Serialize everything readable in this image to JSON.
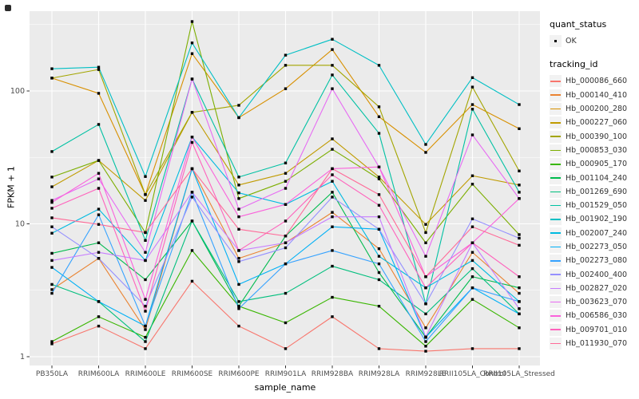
{
  "figure": {
    "y_axis_title": "FPKM + 1",
    "x_axis_title": "sample_name",
    "legend": {
      "quant_title": "quant_status",
      "quant_entries": [
        {
          "label": "OK",
          "marker": "black-square-point"
        }
      ],
      "tracking_title": "tracking_id"
    }
  },
  "chart_data": {
    "type": "line",
    "title": "",
    "xlabel": "sample_name",
    "ylabel": "FPKM + 1",
    "y_scale": "log10",
    "ylim": [
      0.62,
      430
    ],
    "y_major_breaks": [
      1,
      10,
      100
    ],
    "y_minor_breaks": [
      3.1623,
      31.623,
      316.23
    ],
    "y_tick_labels": [
      "1",
      "10",
      "100"
    ],
    "grid": true,
    "panel_bg": "#EBEBEB",
    "grid_color": "#FFFFFF",
    "point_color": "#000000",
    "legend_position": "right",
    "categories": [
      "PB350LA",
      "RRIM600LA",
      "RRIM600LE",
      "RRIM600SE",
      "RRIM600PE",
      "RRIM901LA",
      "RRIM928BA",
      "RRIM928LA",
      "RRIM928LE",
      "RRII105LA_Control",
      "RRII105LA_Stressed"
    ],
    "series": [
      {
        "name": "Hb_000086_660",
        "color": "#F8766D",
        "values": [
          1.25,
          1.7,
          1.15,
          3.7,
          1.7,
          1.15,
          2.0,
          1.15,
          1.1,
          1.15,
          1.15
        ]
      },
      {
        "name": "Hb_000140_410",
        "color": "#EA8331",
        "values": [
          3.2,
          5.5,
          1.6,
          26,
          5.5,
          7.2,
          12.2,
          6.5,
          1.65,
          6.1,
          3.0
        ]
      },
      {
        "name": "Hb_000200_280",
        "color": "#D89000",
        "values": [
          125,
          96,
          16.6,
          191,
          63,
          104,
          205,
          64,
          34.5,
          79,
          52
        ]
      },
      {
        "name": "Hb_000227_060",
        "color": "#C09B00",
        "values": [
          19,
          30,
          15,
          69,
          19.6,
          24,
          43.6,
          22.5,
          9.9,
          23,
          19.6
        ]
      },
      {
        "name": "Hb_000390_100",
        "color": "#A3A500",
        "values": [
          125,
          145,
          16.6,
          69,
          78,
          156,
          156,
          76,
          8.6,
          107,
          25
        ]
      },
      {
        "name": "Hb_000853_030",
        "color": "#7CAE00",
        "values": [
          22.5,
          30,
          8.6,
          333,
          15.5,
          20.9,
          36.4,
          21.8,
          7.2,
          19.9,
          8.3
        ]
      },
      {
        "name": "Hb_000905_170",
        "color": "#39B600",
        "values": [
          1.3,
          2.0,
          1.4,
          6.3,
          2.4,
          1.8,
          2.8,
          2.4,
          1.2,
          2.7,
          1.65
        ]
      },
      {
        "name": "Hb_001104_240",
        "color": "#00BB4E",
        "values": [
          6.0,
          7.2,
          3.8,
          10.5,
          2.4,
          8.1,
          17.3,
          4.3,
          1.4,
          4.0,
          3.3
        ]
      },
      {
        "name": "Hb_001269_690",
        "color": "#00BF7D",
        "values": [
          3.5,
          2.6,
          1.3,
          10.5,
          2.6,
          3.0,
          4.8,
          3.8,
          2.1,
          4.6,
          2.1
        ]
      },
      {
        "name": "Hb_001529_050",
        "color": "#00C1A3",
        "values": [
          35,
          56,
          7.5,
          123,
          22.5,
          28.7,
          132,
          48,
          2.5,
          73,
          17.3
        ]
      },
      {
        "name": "Hb_001902_190",
        "color": "#00BFC4",
        "values": [
          147,
          151,
          22.7,
          230,
          63,
          186,
          245,
          156,
          39.6,
          126,
          79
        ]
      },
      {
        "name": "Hb_002007_240",
        "color": "#00BAE0",
        "values": [
          8.5,
          12.9,
          5.3,
          45,
          17.1,
          14.0,
          20.9,
          5.7,
          3.3,
          5.3,
          2.6
        ]
      },
      {
        "name": "Hb_002273_050",
        "color": "#00B0F6",
        "values": [
          4.7,
          2.6,
          1.7,
          26,
          3.5,
          5.0,
          9.5,
          9.1,
          1.4,
          3.3,
          2.1
        ]
      },
      {
        "name": "Hb_002273_080",
        "color": "#35A2FF",
        "values": [
          3.0,
          11.7,
          1.7,
          17.3,
          2.3,
          5.0,
          6.3,
          5.0,
          1.3,
          3.3,
          2.6
        ]
      },
      {
        "name": "Hb_002400_400",
        "color": "#9590FF",
        "values": [
          9.5,
          5.5,
          2.4,
          15.9,
          5.2,
          6.6,
          15.9,
          9.1,
          2.5,
          10.9,
          7.8
        ]
      },
      {
        "name": "Hb_002827_020",
        "color": "#C77CFF",
        "values": [
          5.3,
          6.1,
          5.3,
          17.3,
          6.3,
          7.2,
          11.3,
          11.3,
          1.41,
          7.2,
          2.3
        ]
      },
      {
        "name": "Hb_003623_070",
        "color": "#E76BF3",
        "values": [
          15,
          21.8,
          6.1,
          123,
          12.9,
          18.5,
          104,
          26.8,
          5.7,
          46.7,
          15.5
        ]
      },
      {
        "name": "Hb_006586_030",
        "color": "#FA62DB",
        "values": [
          14.5,
          24,
          2.7,
          45,
          11.3,
          14.0,
          26,
          26.8,
          4.0,
          7.2,
          15.5
        ]
      },
      {
        "name": "Hb_009701_010",
        "color": "#FF62BC",
        "values": [
          13.1,
          18.5,
          2.2,
          41,
          6.3,
          10.5,
          23.4,
          13.8,
          3.3,
          7.2,
          4.0
        ]
      },
      {
        "name": "Hb_011930_070",
        "color": "#FF6A98",
        "values": [
          11.1,
          9.9,
          8.6,
          26,
          9.1,
          8.1,
          26,
          16.6,
          4.0,
          9.5,
          6.9
        ]
      }
    ]
  }
}
